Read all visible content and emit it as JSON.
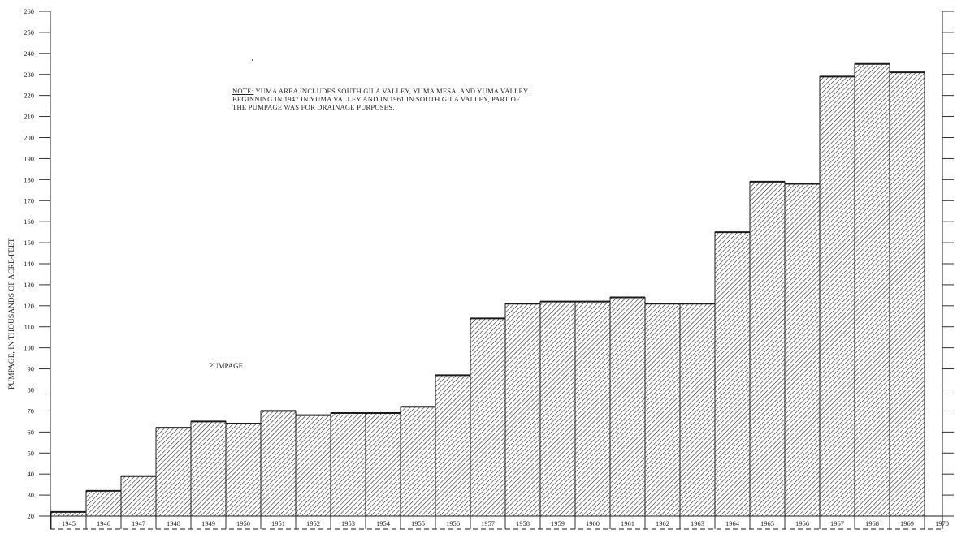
{
  "chart_data": {
    "type": "bar",
    "title": "",
    "ylabel": "PUMPAGE, IN THOUSANDS OF ACRE-FEET",
    "xlabel": "",
    "series_label": "PUMPAGE",
    "ylim": [
      20,
      260
    ],
    "yticks": [
      20,
      30,
      40,
      50,
      60,
      70,
      80,
      90,
      100,
      110,
      120,
      130,
      140,
      150,
      160,
      170,
      180,
      190,
      200,
      210,
      220,
      230,
      240,
      250,
      260
    ],
    "categories": [
      "1945",
      "1946",
      "1947",
      "1948",
      "1949",
      "1950",
      "1951",
      "1952",
      "1953",
      "1954",
      "1955",
      "1956",
      "1957",
      "1958",
      "1959",
      "1960",
      "1961",
      "1962",
      "1963",
      "1964",
      "1965",
      "1966",
      "1967",
      "1968",
      "1969",
      "1970"
    ],
    "values": [
      22,
      32,
      39,
      62,
      65,
      64,
      70,
      68,
      69,
      69,
      72,
      87,
      114,
      121,
      122,
      122,
      124,
      121,
      121,
      155,
      179,
      178,
      229,
      235,
      231,
      null
    ],
    "fill_pattern": "diagonal-hatch",
    "grid": false,
    "note": {
      "prefix": "NOTE:",
      "line1": " YUMA AREA INCLUDES SOUTH GILA VALLEY, YUMA MESA, AND YUMA VALLEY.",
      "line2": "BEGINNING IN 1947 IN YUMA VALLEY AND IN 1961 IN SOUTH GILA VALLEY, PART OF",
      "line3": "THE PUMPAGE WAS FOR DRAINAGE PURPOSES."
    },
    "colors": {
      "ink": "#1a1a1a",
      "background": "#ffffff"
    }
  }
}
